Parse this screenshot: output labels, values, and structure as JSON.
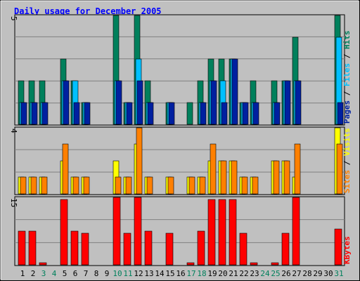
{
  "chart_data": {
    "type": "bar",
    "title": "Daily usage for December 2005",
    "categories": [
      "1",
      "2",
      "3",
      "4",
      "5",
      "6",
      "7",
      "8",
      "9",
      "10",
      "11",
      "12",
      "13",
      "14",
      "15",
      "16",
      "17",
      "18",
      "19",
      "20",
      "21",
      "22",
      "23",
      "24",
      "25",
      "26",
      "27",
      "28",
      "29",
      "30",
      "31"
    ],
    "weekend_days": [
      "3",
      "4",
      "10",
      "11",
      "17",
      "18",
      "24",
      "25",
      "31"
    ],
    "panels": [
      {
        "id": "hits-files-pages",
        "ytick": "5",
        "ymax": 5,
        "legend": [
          "Pages",
          "Files",
          "Hits"
        ],
        "series": [
          {
            "name": "Hits",
            "color": "#00805C",
            "values": [
              2,
              2,
              2,
              0,
              3,
              2,
              1,
              0,
              0,
              5,
              1,
              5,
              2,
              0,
              1,
              0,
              1,
              2,
              3,
              3,
              3,
              1,
              2,
              0,
              2,
              2,
              4,
              0,
              0,
              0,
              5
            ]
          },
          {
            "name": "Files",
            "color": "#00C0FF",
            "values": [
              1,
              1,
              1,
              0,
              2,
              2,
              1,
              0,
              0,
              2,
              1,
              3,
              1,
              0,
              1,
              0,
              0,
              1,
              2,
              2,
              3,
              1,
              1,
              0,
              1,
              2,
              2,
              0,
              0,
              0,
              4
            ]
          },
          {
            "name": "Pages",
            "color": "#0020A0",
            "values": [
              1,
              1,
              1,
              0,
              2,
              1,
              1,
              0,
              0,
              2,
              1,
              2,
              1,
              0,
              1,
              0,
              0,
              1,
              2,
              1,
              3,
              1,
              1,
              0,
              1,
              2,
              2,
              0,
              0,
              0,
              1
            ]
          }
        ]
      },
      {
        "id": "visits-sites",
        "ytick": "4",
        "ymax": 4,
        "legend": [
          "Sites",
          "Visits"
        ],
        "series": [
          {
            "name": "Visits",
            "color": "#FFFF00",
            "values": [
              1,
              1,
              1,
              0,
              2,
              1,
              1,
              0,
              0,
              2,
              1,
              3,
              1,
              0,
              1,
              0,
              1,
              1,
              2,
              2,
              2,
              1,
              1,
              0,
              2,
              2,
              1,
              0,
              0,
              0,
              4
            ]
          },
          {
            "name": "Sites",
            "color": "#FF8000",
            "values": [
              1,
              1,
              1,
              0,
              3,
              1,
              1,
              0,
              0,
              1,
              1,
              4,
              1,
              0,
              1,
              0,
              1,
              1,
              3,
              2,
              2,
              1,
              1,
              0,
              2,
              2,
              3,
              0,
              0,
              0,
              3
            ]
          }
        ]
      },
      {
        "id": "kbytes",
        "ytick": "15",
        "ymax": 15,
        "legend": [
          "KBytes"
        ],
        "series": [
          {
            "name": "KBytes",
            "color": "#FF0000",
            "values": [
              7.5,
              7.5,
              0.5,
              0,
              14.5,
              7.5,
              7,
              0,
              0,
              15,
              7,
              15,
              7.5,
              0,
              7,
              0,
              0.5,
              7.5,
              14.5,
              14.5,
              14.5,
              7,
              0.5,
              0,
              0.5,
              7,
              15,
              0,
              0,
              0,
              8
            ]
          }
        ]
      }
    ]
  }
}
